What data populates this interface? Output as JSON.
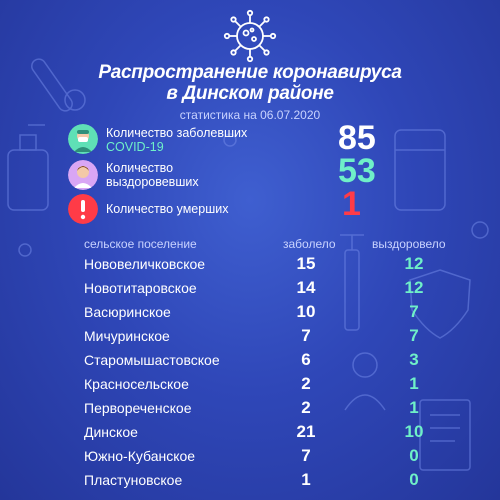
{
  "header": {
    "title_line1": "Распространение коронавируса",
    "title_line2": "в Динском районе",
    "subtitle": "статистика на 06.07.2020"
  },
  "colors": {
    "background": "#2f47b8",
    "accent_green": "#6ff0c8",
    "accent_red": "#ff3b47"
  },
  "summary": {
    "sick_label": "Количество заболевших",
    "sick_label_accent": "COVID-19",
    "sick_value": "85",
    "recovered_label_line1": "Количество",
    "recovered_label_line2": "выздоровевших",
    "recovered_value": "53",
    "deaths_label": "Количество умерших",
    "deaths_value": "1"
  },
  "table": {
    "col_name": "сельское поселение",
    "col_sick": "заболело",
    "col_recovered": "выздоровело",
    "rows": [
      {
        "name": "Нововеличковское",
        "sick": "15",
        "recovered": "12"
      },
      {
        "name": "Новотитаровское",
        "sick": "14",
        "recovered": "12"
      },
      {
        "name": "Васюринское",
        "sick": "10",
        "recovered": "7"
      },
      {
        "name": "Мичуринское",
        "sick": "7",
        "recovered": "7"
      },
      {
        "name": "Старомышастовское",
        "sick": "6",
        "recovered": "3"
      },
      {
        "name": "Красносельское",
        "sick": "2",
        "recovered": "1"
      },
      {
        "name": "Первореченское",
        "sick": "2",
        "recovered": "1"
      },
      {
        "name": "Динское",
        "sick": "21",
        "recovered": "10"
      },
      {
        "name": "Южно-Кубанское",
        "sick": "7",
        "recovered": "0"
      },
      {
        "name": "Пластуновское",
        "sick": "1",
        "recovered": "0"
      }
    ]
  }
}
